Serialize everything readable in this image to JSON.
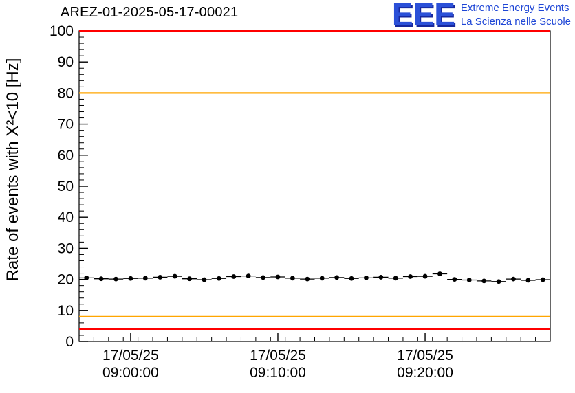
{
  "header": {
    "title": "AREZ-01-2025-05-17-00021"
  },
  "logo": {
    "letters": "EEE",
    "line1": "Extreme Energy Events",
    "line2": "La Scienza nelle Scuole",
    "text_color": "#1e46d6",
    "letters_color": "#2b50d8"
  },
  "chart_data": {
    "type": "scatter",
    "title": "AREZ-01-2025-05-17-00021",
    "xlabel": "",
    "ylabel": "Rate of events with X²<10 [Hz]",
    "ylim": [
      0,
      100
    ],
    "grid": false,
    "legend": "none",
    "y_major_ticks": [
      0,
      10,
      20,
      30,
      40,
      50,
      60,
      70,
      80,
      90,
      100
    ],
    "y_minor_tick_interval": 2,
    "x_axis": {
      "start_s": 0,
      "end_s": 1920,
      "minor_tick_interval_s": 60,
      "major_ticks": [
        {
          "t_s": 210,
          "label_line1": "17/05/25",
          "label_line2": "09:00:00"
        },
        {
          "t_s": 810,
          "label_line1": "17/05/25",
          "label_line2": "09:10:00"
        },
        {
          "t_s": 1410,
          "label_line1": "17/05/25",
          "label_line2": "09:20:00"
        }
      ]
    },
    "threshold_lines": [
      {
        "y": 100,
        "color": "#ff0000"
      },
      {
        "y": 80,
        "color": "#ffa500"
      },
      {
        "y": 8,
        "color": "#ffa500"
      },
      {
        "y": 4,
        "color": "#ff0000"
      }
    ],
    "series": [
      {
        "name": "event-rate",
        "marker": "filled-circle",
        "color": "#000000",
        "bin_half_width_s": 30,
        "y_error": 0.6,
        "points": [
          [
            30,
            20.5
          ],
          [
            90,
            20.2
          ],
          [
            150,
            20.1
          ],
          [
            210,
            20.3
          ],
          [
            270,
            20.4
          ],
          [
            330,
            20.7
          ],
          [
            390,
            21.0
          ],
          [
            450,
            20.2
          ],
          [
            510,
            19.9
          ],
          [
            570,
            20.3
          ],
          [
            630,
            20.9
          ],
          [
            690,
            21.1
          ],
          [
            750,
            20.6
          ],
          [
            810,
            20.8
          ],
          [
            870,
            20.4
          ],
          [
            930,
            20.1
          ],
          [
            990,
            20.4
          ],
          [
            1050,
            20.6
          ],
          [
            1110,
            20.3
          ],
          [
            1170,
            20.5
          ],
          [
            1230,
            20.7
          ],
          [
            1290,
            20.4
          ],
          [
            1350,
            20.9
          ],
          [
            1410,
            21.0
          ],
          [
            1470,
            21.8
          ],
          [
            1530,
            20.0
          ],
          [
            1590,
            19.8
          ],
          [
            1650,
            19.5
          ],
          [
            1710,
            19.3
          ],
          [
            1770,
            20.1
          ],
          [
            1830,
            19.7
          ],
          [
            1890,
            19.9
          ]
        ]
      }
    ]
  }
}
